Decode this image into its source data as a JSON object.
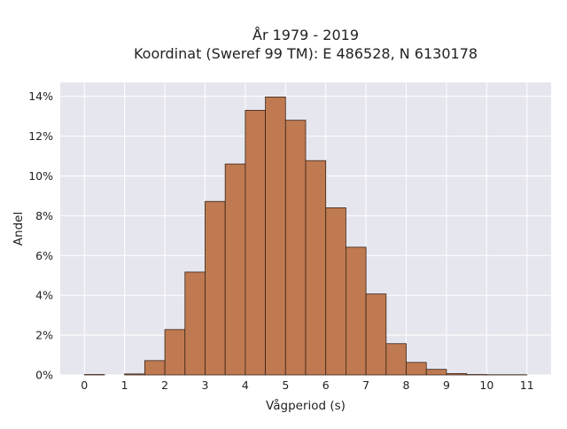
{
  "chart_data": {
    "type": "bar",
    "title_lines": [
      "År 1979 - 2019",
      "Koordinat (Sweref 99 TM): E 486528, N 6130178"
    ],
    "xlabel": "Vågperiod (s)",
    "ylabel": "Andel",
    "bin_width": 0.5,
    "bin_starts": [
      0,
      0.5,
      1,
      1.5,
      2,
      2.5,
      3,
      3.5,
      4,
      4.5,
      5,
      5.5,
      6,
      6.5,
      7,
      7.5,
      8,
      8.5,
      9,
      9.5,
      10,
      10.5
    ],
    "values": [
      0.02,
      0.0,
      0.05,
      0.72,
      2.28,
      5.17,
      8.72,
      10.6,
      13.3,
      13.97,
      12.8,
      10.77,
      8.4,
      6.42,
      4.07,
      1.57,
      0.63,
      0.28,
      0.07,
      0.02,
      0.01,
      0.01
    ],
    "x_ticks": [
      0,
      1,
      2,
      3,
      4,
      5,
      6,
      7,
      8,
      9,
      10,
      11
    ],
    "x_tick_labels": [
      "0",
      "1",
      "2",
      "3",
      "4",
      "5",
      "6",
      "7",
      "8",
      "9",
      "10",
      "11"
    ],
    "y_ticks": [
      0,
      2,
      4,
      6,
      8,
      10,
      12,
      14
    ],
    "y_tick_labels": [
      "0%",
      "2%",
      "4%",
      "6%",
      "8%",
      "10%",
      "12%",
      "14%"
    ],
    "xlim": [
      -0.6,
      11.6
    ],
    "ylim": [
      0,
      14.7
    ],
    "grid": true,
    "colors": {
      "bar": "#bf7a52",
      "bar_edge": "#3a2416",
      "plot_background": "#e6e6ef",
      "grid": "#ffffff"
    }
  }
}
